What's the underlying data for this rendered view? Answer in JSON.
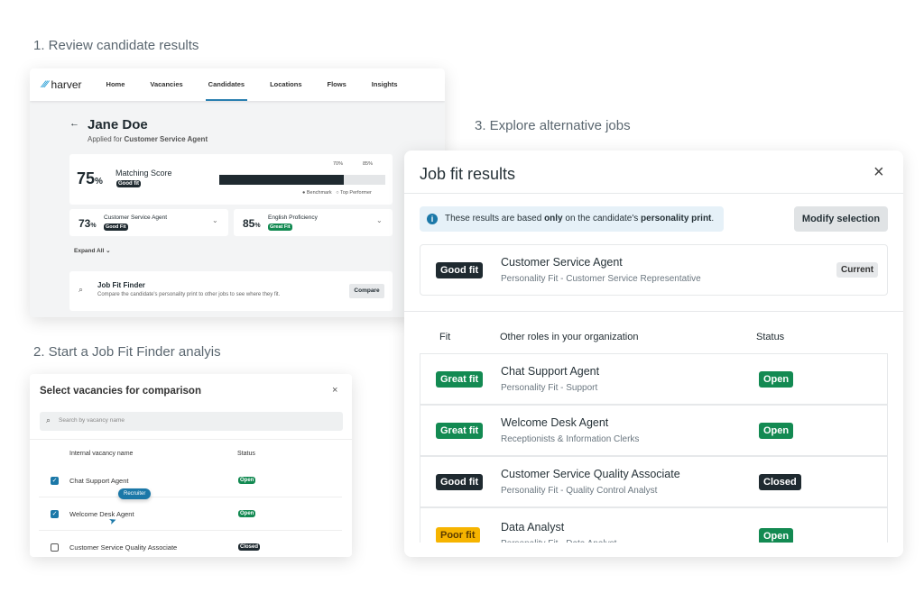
{
  "steps": [
    "1. Review candidate results",
    "2. Start a Job Fit Finder analyis",
    "3. Explore alternative jobs"
  ],
  "app": {
    "logo": "harver",
    "nav": [
      "Home",
      "Vacancies",
      "Candidates",
      "Locations",
      "Flows",
      "Insights"
    ],
    "active_nav": "Candidates"
  },
  "candidate": {
    "name": "Jane Doe",
    "applied_prefix": "Applied for",
    "applied_role": "Customer Service Agent",
    "matching": {
      "score": "75",
      "unit": "%",
      "label": "Matching Score",
      "badge": "Good fit",
      "benchmark_pct": "70%",
      "top_pct": "85%",
      "legend_benchmark": "Benchmark",
      "legend_top": "Top Performer",
      "fill_percent": 75
    },
    "sub": [
      {
        "score": "73",
        "unit": "%",
        "label": "Customer Service Agent",
        "badge": "Good Fit"
      },
      {
        "score": "85",
        "unit": "%",
        "label": "English Proficiency",
        "badge": "Great Fit"
      }
    ],
    "expand": "Expand All",
    "finder": {
      "title": "Job Fit Finder",
      "desc": "Compare the candidate's personality print to other jobs to see where they fit.",
      "button": "Compare"
    }
  },
  "select_modal": {
    "title": "Select vacancies for comparison",
    "search_placeholder": "Search by vacancy name",
    "col_name": "Internal vacancy name",
    "col_status": "Status",
    "rows": [
      {
        "name": "Chat Support Agent",
        "status": "Open",
        "checked": true
      },
      {
        "name": "Welcome Desk Agent",
        "status": "Open",
        "checked": true
      },
      {
        "name": "Customer Service Quality Associate",
        "status": "Closed",
        "checked": false
      }
    ],
    "tooltip": "Recruiter"
  },
  "jobfit": {
    "title": "Job fit results",
    "info_pre": "These results are based ",
    "info_bold1": "only",
    "info_mid": " on the candidate's ",
    "info_bold2": "personality print",
    "info_end": ".",
    "modify": "Modify selection",
    "current": {
      "fit": "Good fit",
      "title": "Customer Service Agent",
      "sub": "Personality Fit - Customer Service Representative",
      "badge": "Current"
    },
    "col_fit": "Fit",
    "col_roles": "Other roles in your organization",
    "col_status": "Status",
    "rows": [
      {
        "fit": "Great fit",
        "title": "Chat Support Agent",
        "sub": "Personality Fit - Support",
        "status": "Open"
      },
      {
        "fit": "Great fit",
        "title": "Welcome Desk Agent",
        "sub": "Receptionists & Information Clerks",
        "status": "Open"
      },
      {
        "fit": "Good fit",
        "title": "Customer Service Quality Associate",
        "sub": "Personality Fit - Quality Control Analyst",
        "status": "Closed"
      },
      {
        "fit": "Poor fit",
        "title": "Data Analyst",
        "sub": "Personality Fit - Data Analyst",
        "status": "Open"
      }
    ]
  }
}
